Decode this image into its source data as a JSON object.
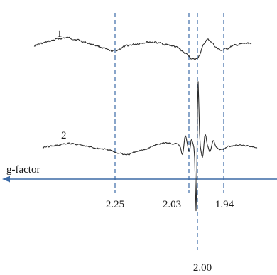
{
  "chart_data": {
    "type": "line",
    "title": "",
    "xlabel": "g-factor",
    "ylabel": "",
    "x_direction": "increasing-to-left",
    "grid": false,
    "colors": {
      "axis": "#3b6aa6",
      "guides": "#3b6aa6",
      "trace": "#2b2b2b"
    },
    "guide_lines": [
      {
        "g": 2.25,
        "label": "2.25"
      },
      {
        "g": 2.03,
        "label": "2.03"
      },
      {
        "g": 2.0,
        "label": "2.00"
      },
      {
        "g": 1.94,
        "label": "1.94"
      }
    ],
    "series": [
      {
        "label": "1",
        "features": "broad weak line at g 2.00 with small shoulders near 2.03 and 1.94"
      },
      {
        "label": "2",
        "features": "sharp intense line at g 2.00 flanked by smaller lines between 2.03 and 1.94"
      }
    ]
  }
}
